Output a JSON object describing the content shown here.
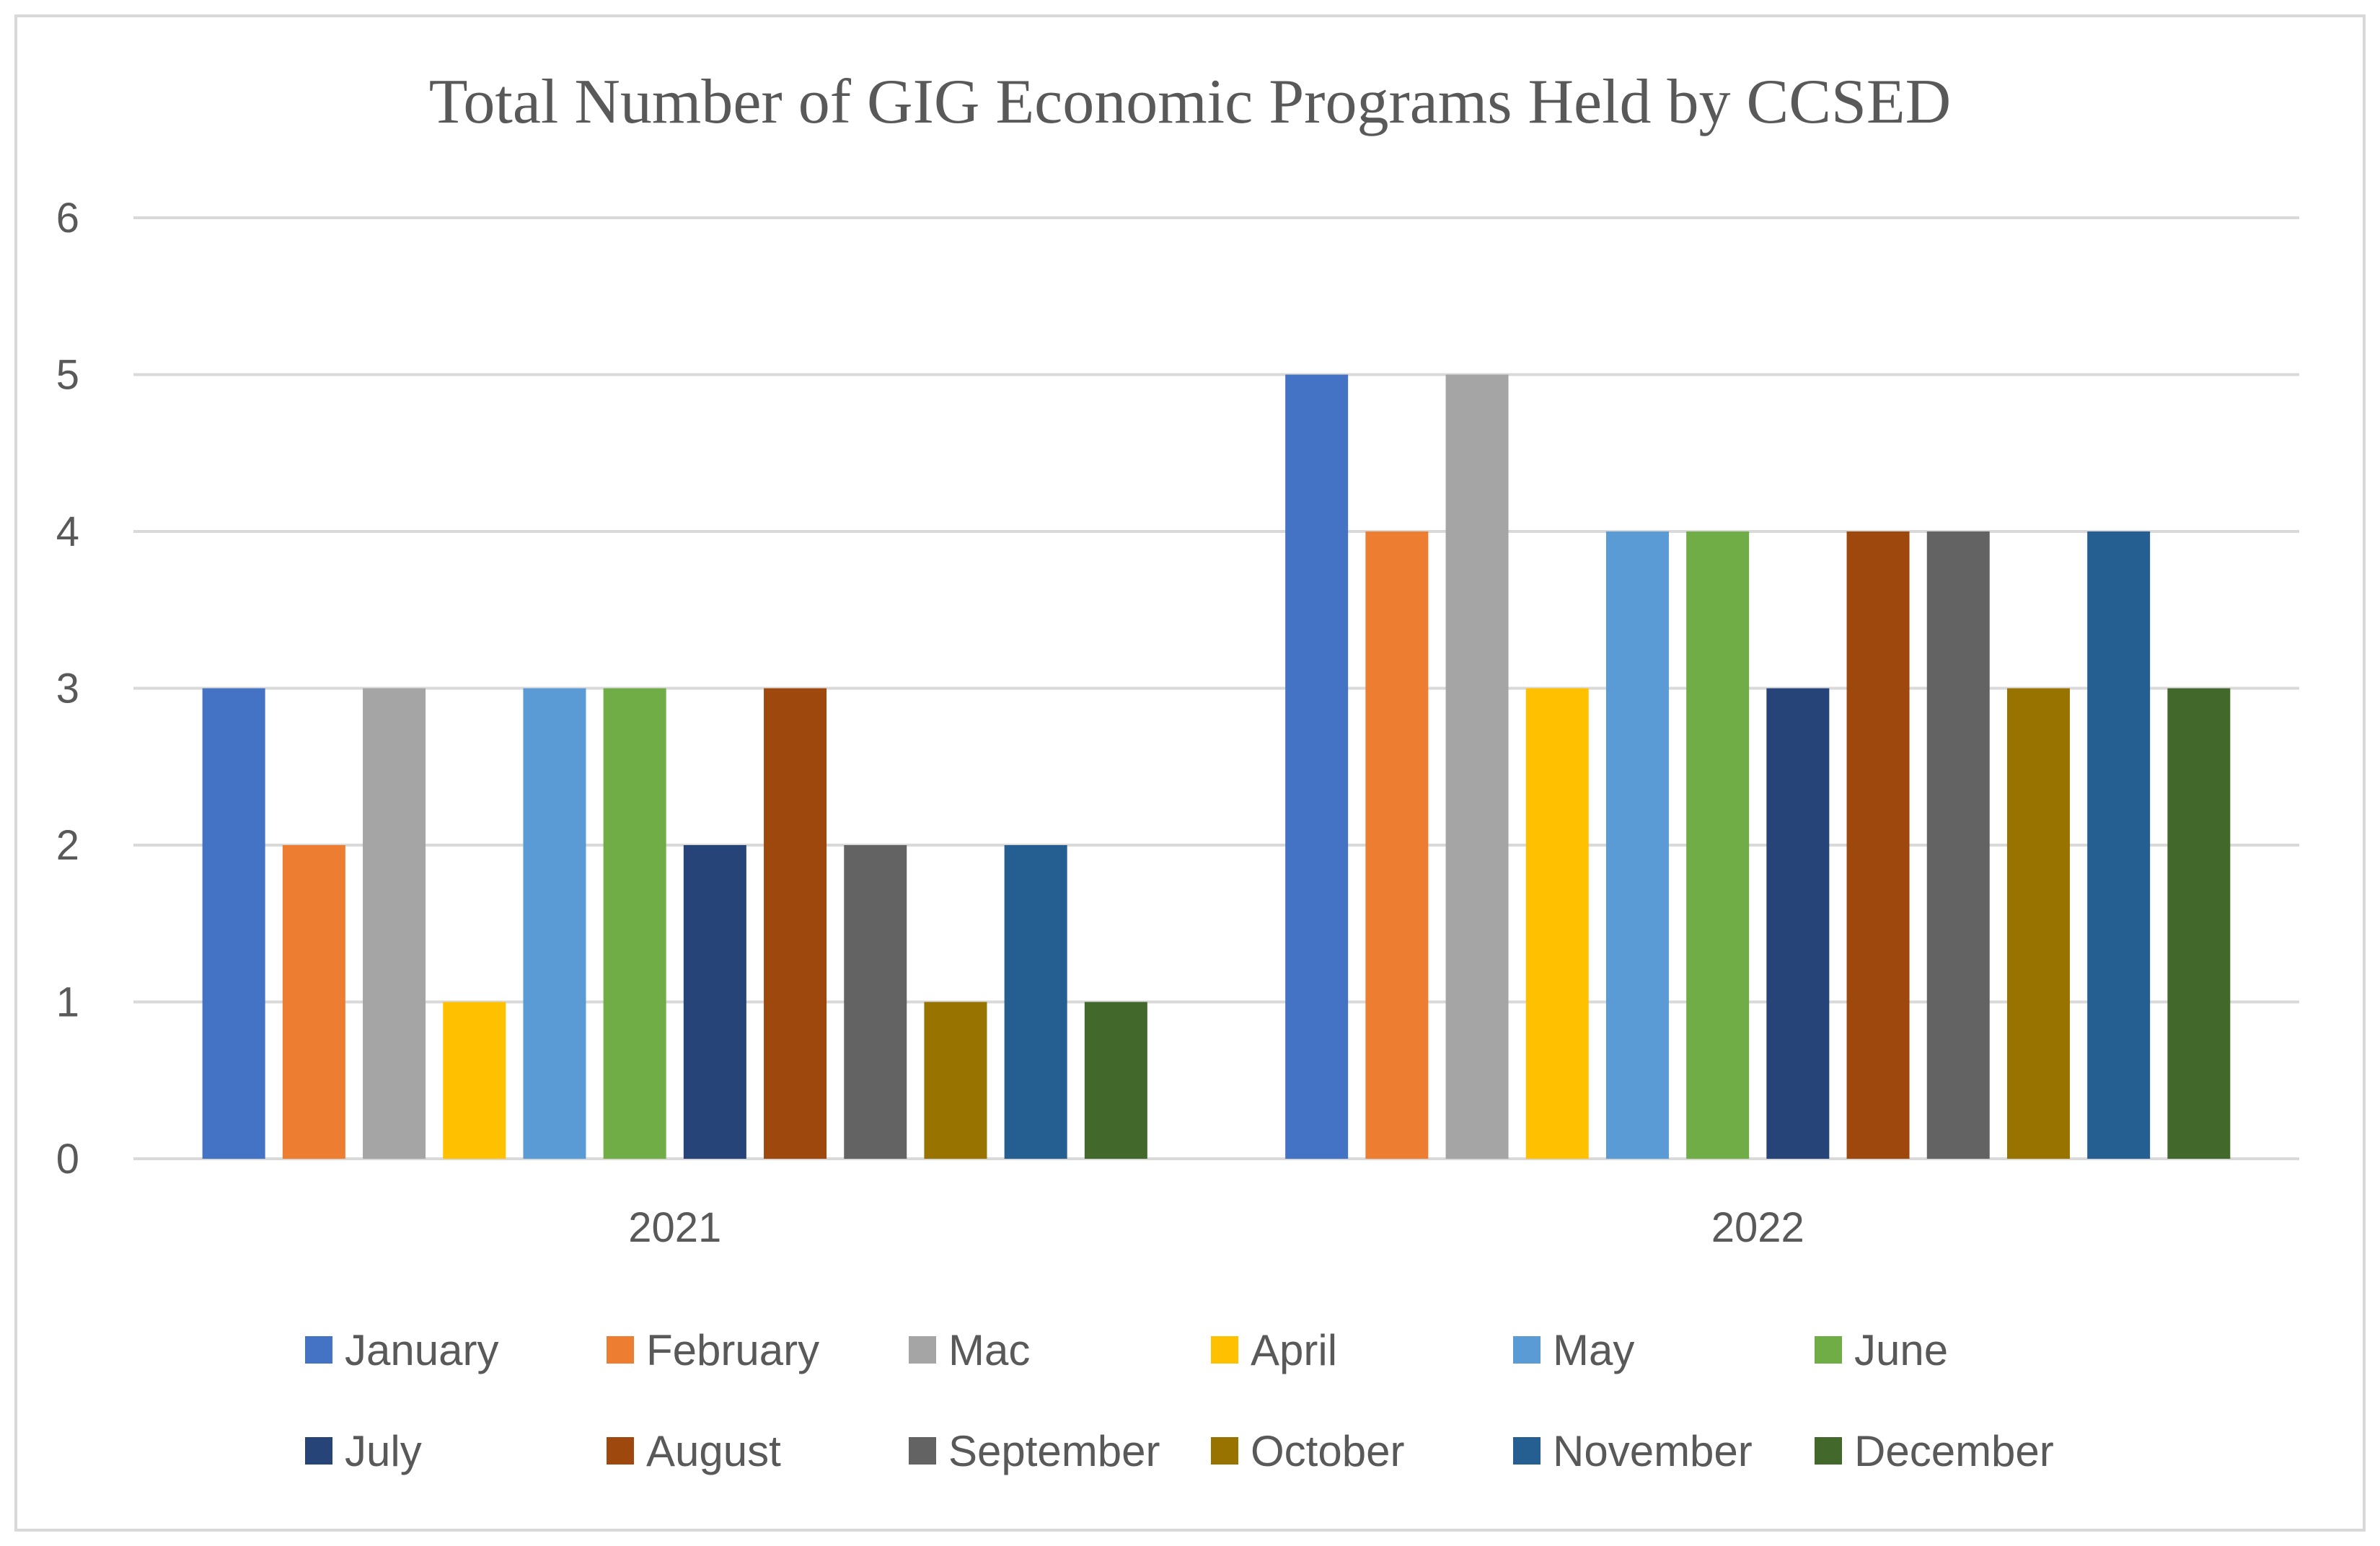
{
  "chart_data": {
    "type": "bar",
    "title": "Total Number of GIG Economic Programs Held by CCSED",
    "xlabel": "",
    "ylabel": "",
    "categories": [
      "2021",
      "2022"
    ],
    "ylim": [
      0,
      6
    ],
    "yticks": [
      "0",
      "1",
      "2",
      "3",
      "4",
      "5",
      "6"
    ],
    "grid": true,
    "legend_position": "bottom",
    "series": [
      {
        "name": "January",
        "color": "#4472C4",
        "values": [
          3,
          5
        ]
      },
      {
        "name": "February",
        "color": "#ED7D31",
        "values": [
          2,
          4
        ]
      },
      {
        "name": "Mac",
        "color": "#A5A5A5",
        "values": [
          3,
          5
        ]
      },
      {
        "name": "April",
        "color": "#FFC000",
        "values": [
          1,
          3
        ]
      },
      {
        "name": "May",
        "color": "#5B9BD5",
        "values": [
          3,
          4
        ]
      },
      {
        "name": "June",
        "color": "#70AD47",
        "values": [
          3,
          4
        ]
      },
      {
        "name": "July",
        "color": "#264478",
        "values": [
          2,
          3
        ]
      },
      {
        "name": "August",
        "color": "#9E480E",
        "values": [
          3,
          4
        ]
      },
      {
        "name": "September",
        "color": "#636363",
        "values": [
          2,
          4
        ]
      },
      {
        "name": "October",
        "color": "#997300",
        "values": [
          1,
          3
        ]
      },
      {
        "name": "November",
        "color": "#255E91",
        "values": [
          2,
          4
        ]
      },
      {
        "name": "December",
        "color": "#43682B",
        "values": [
          1,
          3
        ]
      }
    ]
  }
}
